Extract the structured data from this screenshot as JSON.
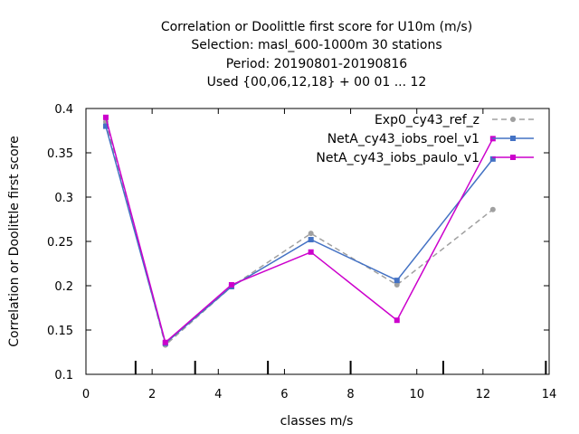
{
  "chart_data": {
    "type": "line",
    "title_lines": [
      "Correlation or Doolittle first score  for U10m (m/s)",
      "Selection: masl_600-1000m     30 stations",
      "Period: 20190801-20190816",
      "Used {00,06,12,18} + 00 01 ... 12"
    ],
    "xlabel": "classes m/s",
    "ylabel": "Correlation or Doolittle first score",
    "xlim": [
      0,
      14
    ],
    "ylim": [
      0.1,
      0.4
    ],
    "xticks": [
      0,
      2,
      4,
      6,
      8,
      10,
      12,
      14
    ],
    "yticks": [
      0.1,
      0.15,
      0.2,
      0.25,
      0.3,
      0.35,
      0.4
    ],
    "class_boundaries": [
      1.5,
      3.3,
      5.5,
      8,
      10.8,
      13.9
    ],
    "grid": false,
    "legend_position": "top-right",
    "series": [
      {
        "name": "Exp0_cy43_ref_z",
        "color": "#a0a0a0",
        "dashed": true,
        "x": [
          0.6,
          2.4,
          4.4,
          6.8,
          9.4,
          12.3
        ],
        "y": [
          0.385,
          0.133,
          0.199,
          0.259,
          0.201,
          0.286
        ]
      },
      {
        "name": "NetA_cy43_iobs_roel_v1",
        "color": "#4472c4",
        "dashed": false,
        "x": [
          0.6,
          2.4,
          4.4,
          6.8,
          9.4,
          12.3
        ],
        "y": [
          0.38,
          0.135,
          0.199,
          0.252,
          0.206,
          0.343
        ]
      },
      {
        "name": "NetA_cy43_iobs_paulo_v1",
        "color": "#cc00cc",
        "dashed": false,
        "x": [
          0.6,
          2.4,
          4.4,
          6.8,
          9.4,
          12.3
        ],
        "y": [
          0.39,
          0.136,
          0.201,
          0.238,
          0.161,
          0.366
        ]
      }
    ]
  }
}
